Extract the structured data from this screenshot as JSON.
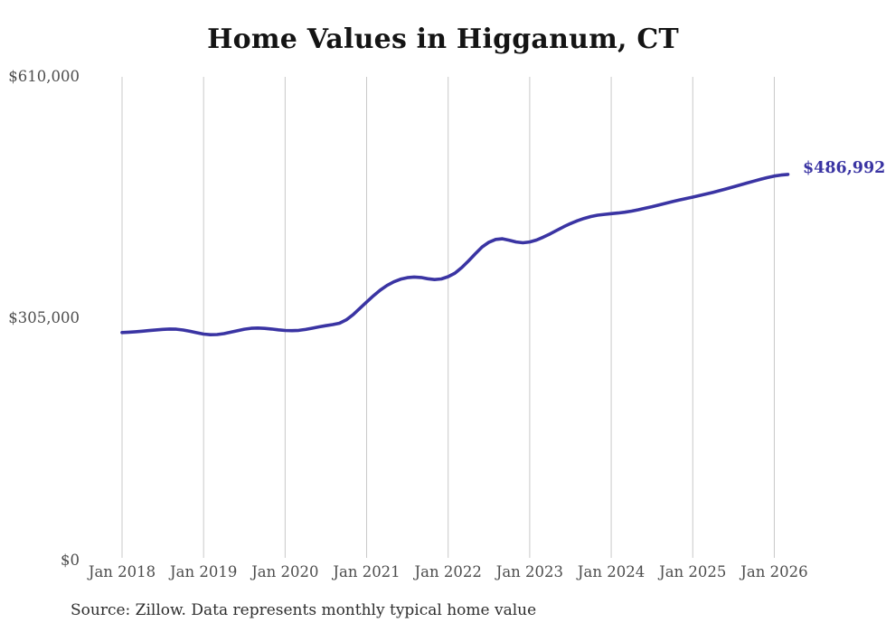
{
  "page": {
    "source_note": "Source: Zillow. Data represents monthly typical home value"
  },
  "chart_data": {
    "type": "line",
    "title": "Home Values in Higganum, CT",
    "series_name": "Monthly typical home value",
    "unit": "USD",
    "x_start": "2018-01",
    "x_interval": "month",
    "x_tick_labels": [
      "Jan 2018",
      "Jan 2019",
      "Jan 2020",
      "Jan 2021",
      "Jan 2022",
      "Jan 2023",
      "Jan 2024",
      "Jan 2025",
      "Jan 2026"
    ],
    "y_tick_labels": [
      "$610,000",
      "$305,000",
      "$0"
    ],
    "y_tick_values": [
      610000,
      305000,
      0
    ],
    "ylim": [
      0,
      610000
    ],
    "grid": "vertical-only",
    "grid_color": "#c8c8c8",
    "line_color": "#3a34a3",
    "end_label": "$486,992",
    "end_value": 486992,
    "values": [
      287500,
      288000,
      288600,
      289300,
      290100,
      290900,
      291600,
      292000,
      291800,
      290800,
      289200,
      287300,
      285600,
      284800,
      285000,
      286200,
      288000,
      290000,
      291800,
      292900,
      293200,
      292800,
      292000,
      291000,
      290200,
      289900,
      290300,
      291400,
      293000,
      294700,
      296200,
      297600,
      299300,
      303500,
      310000,
      318000,
      326000,
      334000,
      341000,
      347000,
      351500,
      354800,
      356800,
      357600,
      357000,
      355400,
      354400,
      355200,
      358000,
      362500,
      369500,
      378000,
      387000,
      395500,
      401500,
      405000,
      405800,
      404000,
      401800,
      400800,
      401800,
      404200,
      407800,
      412000,
      416500,
      421000,
      425000,
      428500,
      431500,
      433800,
      435500,
      436600,
      437500,
      438300,
      439300,
      440700,
      442400,
      444300,
      446300,
      448400,
      450500,
      452600,
      454600,
      456500,
      458400,
      460300,
      462300,
      464400,
      466600,
      468900,
      471300,
      473700,
      476100,
      478500,
      480800,
      483000,
      484900,
      486200,
      486992
    ]
  }
}
